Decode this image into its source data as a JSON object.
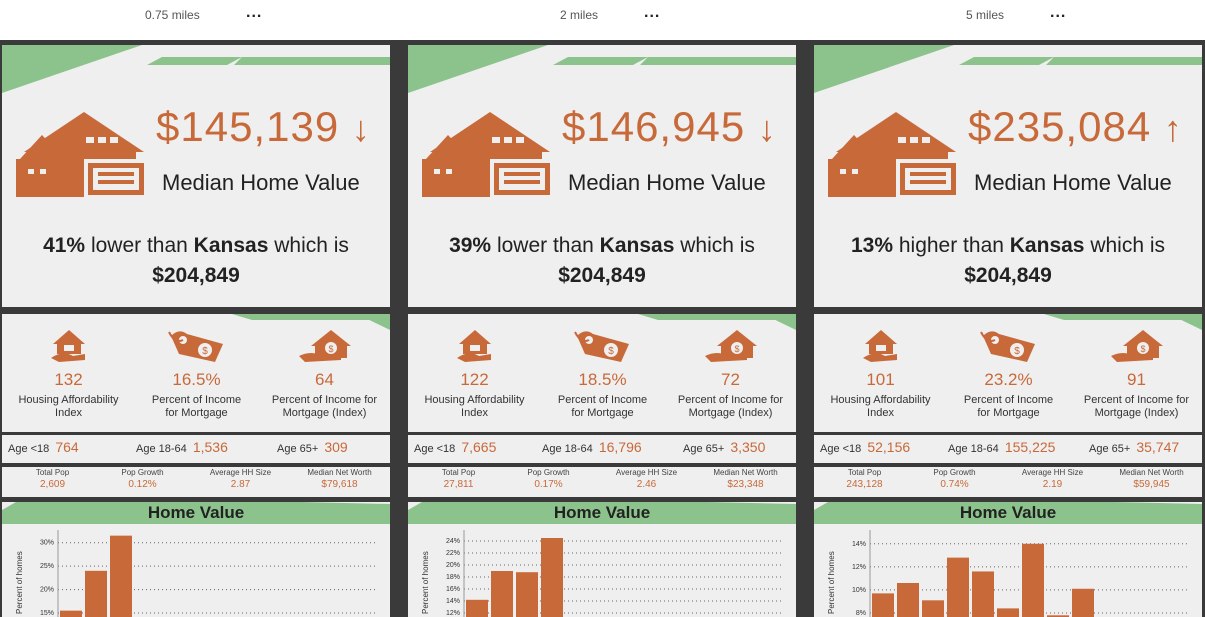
{
  "colors": {
    "accent": "#c8693a",
    "green": "#8cc38c",
    "card_bg": "#efefef",
    "frame": "#3a3a3a"
  },
  "columns": [
    {
      "ring_label": "0.75 miles",
      "menu": "...",
      "home": {
        "value": "$145,139",
        "arrow": "↓",
        "label": "Median Home Value",
        "pct": "41%",
        "direction": "lower than",
        "state": "Kansas",
        "which_is": "which is",
        "state_value": "$204,849"
      },
      "afford": [
        {
          "icon": "house-hand-icon",
          "value": "132",
          "label1": "Housing Affordability",
          "label2": "Index"
        },
        {
          "icon": "price-tag-icon",
          "value": "16.5%",
          "label1": "Percent of Income",
          "label2": "for Mortgage"
        },
        {
          "icon": "house-dollar-hand-icon",
          "value": "64",
          "label1": "Percent of Income for",
          "label2": "Mortgage (Index)"
        }
      ],
      "age": {
        "lt18_label": "Age <18",
        "lt18": "764",
        "mid_label": "Age 18-64",
        "mid": "1,536",
        "gt65_label": "Age 65+",
        "gt65": "309"
      },
      "pop": [
        {
          "label": "Total Pop",
          "value": "2,609"
        },
        {
          "label": "Pop Growth",
          "value": "0.12%"
        },
        {
          "label": "Average HH Size",
          "value": "2.87"
        },
        {
          "label": "Median Net Worth",
          "value": "$79,618"
        }
      ],
      "chart_title": "Home Value"
    },
    {
      "ring_label": "2 miles",
      "menu": "...",
      "home": {
        "value": "$146,945",
        "arrow": "↓",
        "label": "Median Home Value",
        "pct": "39%",
        "direction": "lower than",
        "state": "Kansas",
        "which_is": "which is",
        "state_value": "$204,849"
      },
      "afford": [
        {
          "icon": "house-hand-icon",
          "value": "122",
          "label1": "Housing Affordability",
          "label2": "Index"
        },
        {
          "icon": "price-tag-icon",
          "value": "18.5%",
          "label1": "Percent of Income",
          "label2": "for Mortgage"
        },
        {
          "icon": "house-dollar-hand-icon",
          "value": "72",
          "label1": "Percent of Income for",
          "label2": "Mortgage (Index)"
        }
      ],
      "age": {
        "lt18_label": "Age <18",
        "lt18": "7,665",
        "mid_label": "Age 18-64",
        "mid": "16,796",
        "gt65_label": "Age 65+",
        "gt65": "3,350"
      },
      "pop": [
        {
          "label": "Total Pop",
          "value": "27,811"
        },
        {
          "label": "Pop Growth",
          "value": "0.17%"
        },
        {
          "label": "Average HH Size",
          "value": "2.46"
        },
        {
          "label": "Median Net Worth",
          "value": "$23,348"
        }
      ],
      "chart_title": "Home Value"
    },
    {
      "ring_label": "5 miles",
      "menu": "...",
      "home": {
        "value": "$235,084",
        "arrow": "↑",
        "label": "Median Home Value",
        "pct": "13%",
        "direction": "higher than",
        "state": "Kansas",
        "which_is": "which is",
        "state_value": "$204,849"
      },
      "afford": [
        {
          "icon": "house-hand-icon",
          "value": "101",
          "label1": "Housing Affordability",
          "label2": "Index"
        },
        {
          "icon": "price-tag-icon",
          "value": "23.2%",
          "label1": "Percent of Income",
          "label2": "for Mortgage"
        },
        {
          "icon": "house-dollar-hand-icon",
          "value": "91",
          "label1": "Percent of Income for",
          "label2": "Mortgage (Index)"
        }
      ],
      "age": {
        "lt18_label": "Age <18",
        "lt18": "52,156",
        "mid_label": "Age 18-64",
        "mid": "155,225",
        "gt65_label": "Age 65+",
        "gt65": "35,747"
      },
      "pop": [
        {
          "label": "Total Pop",
          "value": "243,128"
        },
        {
          "label": "Pop Growth",
          "value": "0.74%"
        },
        {
          "label": "Average HH Size",
          "value": "2.19"
        },
        {
          "label": "Median Net Worth",
          "value": "$59,945"
        }
      ],
      "chart_title": "Home Value"
    }
  ],
  "chart_data": [
    {
      "type": "bar",
      "title": "Home Value",
      "ylabel": "Percent of homes",
      "ylim": [
        15,
        31
      ],
      "yticks": [
        15,
        20,
        25,
        30
      ],
      "tick_format": "%",
      "values": [
        15.5,
        24,
        31.5
      ]
    },
    {
      "type": "bar",
      "title": "Home Value",
      "ylabel": "Percent of homes",
      "ylim": [
        12,
        24.5
      ],
      "yticks": [
        12,
        14,
        16,
        18,
        20,
        22,
        24
      ],
      "tick_format": "%",
      "values": [
        14.2,
        19,
        18.8,
        24.5
      ]
    },
    {
      "type": "bar",
      "title": "Home Value",
      "ylabel": "Percent of homes",
      "ylim": [
        8,
        14.5
      ],
      "yticks": [
        8,
        10,
        12,
        14
      ],
      "tick_format": "%",
      "values": [
        9.7,
        10.6,
        9.1,
        12.8,
        11.6,
        8.4,
        14.0,
        7.8,
        10.1
      ]
    }
  ]
}
